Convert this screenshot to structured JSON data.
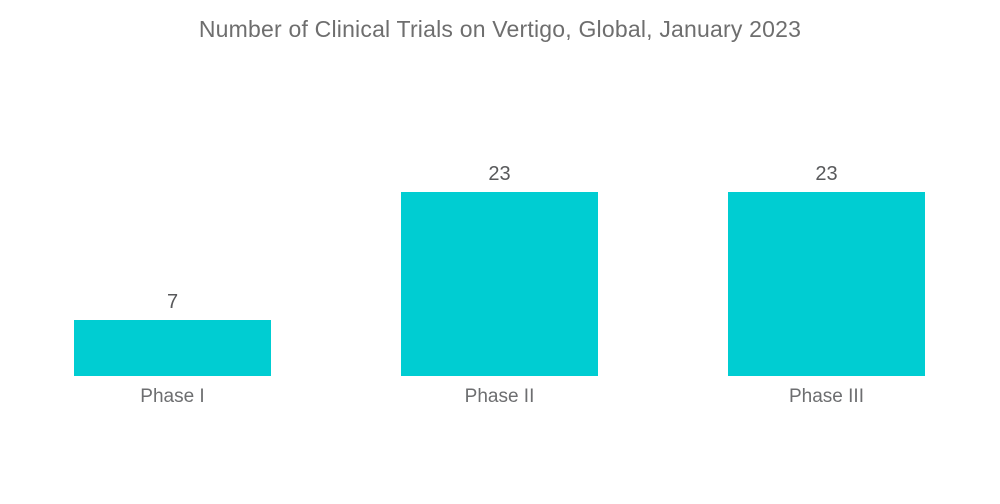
{
  "chart_data": {
    "type": "bar",
    "title": "Number of Clinical Trials on Vertigo, Global, January 2023",
    "categories": [
      "Phase I",
      "Phase II",
      "Phase III"
    ],
    "values": [
      7,
      23,
      23
    ],
    "xlabel": "",
    "ylabel": "",
    "ylim": [
      0,
      23
    ],
    "grid": false,
    "axes_visible": false,
    "data_labels_position": "above-bar",
    "legend": "none",
    "colors": {
      "bar": "#00CDD2",
      "title_text": "#6E6E6E",
      "value_text": "#58595B",
      "category_text": "#6D6E70",
      "background": "#FFFFFF"
    }
  }
}
